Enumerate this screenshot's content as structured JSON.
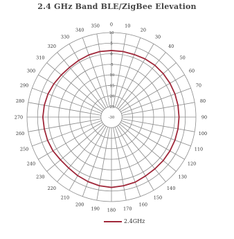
{
  "chart_data": {
    "type": "line",
    "subtype": "polar",
    "title": "2.4 GHz Band BLE/ZigBee Elevation",
    "legend_position": "bottom",
    "grid": true,
    "angle_labels": [
      "0",
      "10",
      "20",
      "30",
      "40",
      "50",
      "60",
      "70",
      "80",
      "90",
      "100",
      "110",
      "120",
      "130",
      "140",
      "150",
      "160",
      "170",
      "180",
      "190",
      "200",
      "210",
      "220",
      "230",
      "240",
      "250",
      "260",
      "270",
      "280",
      "290",
      "300",
      "310",
      "320",
      "330",
      "340",
      "350"
    ],
    "radial_labels": [
      "-30",
      "-25",
      "-20",
      "-15",
      "-10",
      "-5",
      "0",
      "5",
      "10"
    ],
    "r_range": [
      -30,
      10
    ],
    "series": [
      {
        "name": "2.4GHz",
        "color": "#a0283a",
        "theta": [
          0,
          10,
          20,
          30,
          40,
          50,
          60,
          70,
          80,
          90,
          100,
          110,
          120,
          130,
          140,
          150,
          160,
          170,
          180,
          190,
          200,
          210,
          220,
          230,
          240,
          250,
          260,
          270,
          280,
          290,
          300,
          310,
          320,
          330,
          340,
          350
        ],
        "r": [
          1.5,
          1.5,
          1.5,
          1.8,
          2.0,
          2.0,
          2.0,
          2.0,
          2.0,
          2.0,
          2.0,
          2.0,
          2.0,
          2.0,
          2.0,
          2.2,
          2.8,
          3.0,
          3.3,
          3.0,
          2.5,
          2.0,
          1.5,
          1.5,
          2.0,
          2.2,
          2.3,
          2.5,
          2.3,
          2.0,
          1.5,
          1.0,
          0.8,
          1.0,
          1.3,
          1.5
        ]
      }
    ]
  }
}
